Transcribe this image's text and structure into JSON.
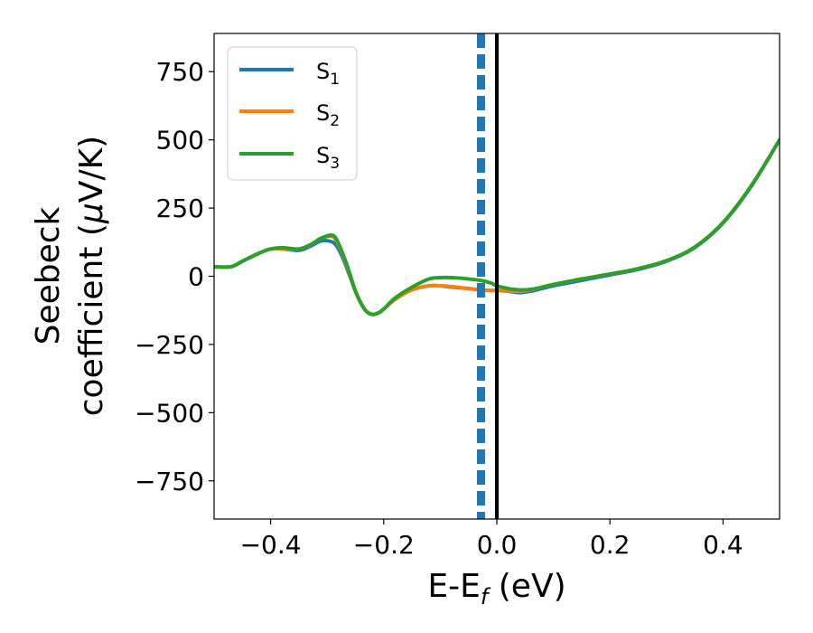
{
  "chart_data": {
    "type": "line",
    "xlabel_main": "E-E",
    "xlabel_sub": "f",
    "xlabel_unit": " (eV)",
    "ylabel_line1": "Seebeck",
    "ylabel_line2_prefix": "coefficient  (",
    "ylabel_mu": "μ",
    "ylabel_line2_suffix": "V/K)",
    "xlim": [
      -0.5,
      0.5
    ],
    "ylim": [
      -890,
      890
    ],
    "xticks": [
      -0.4,
      -0.2,
      0.0,
      0.2,
      0.4
    ],
    "xtick_labels": [
      "−0.4",
      "−0.2",
      "0.0",
      "0.2",
      "0.4"
    ],
    "yticks": [
      750,
      500,
      250,
      0,
      -250,
      -500,
      -750
    ],
    "ytick_labels": [
      "750",
      "500",
      "250",
      "0",
      "−250",
      "−500",
      "−750"
    ],
    "grid": false,
    "legend_position": "top-left",
    "vlines": [
      {
        "x": -0.028,
        "style": "dashed",
        "color": "#1f77b4"
      },
      {
        "x": 0.0,
        "style": "solid",
        "color": "#000000"
      }
    ],
    "series": [
      {
        "name_main": "S",
        "name_sub": "1",
        "color": "#1f77b4",
        "x": [
          -0.5,
          -0.47,
          -0.45,
          -0.42,
          -0.4,
          -0.38,
          -0.35,
          -0.33,
          -0.31,
          -0.29,
          -0.28,
          -0.27,
          -0.26,
          -0.25,
          -0.24,
          -0.23,
          -0.22,
          -0.21,
          -0.2,
          -0.18,
          -0.15,
          -0.12,
          -0.1,
          -0.08,
          -0.05,
          -0.03,
          -0.01,
          0.0,
          0.02,
          0.04,
          0.06,
          0.08,
          0.1,
          0.15,
          0.2,
          0.25,
          0.3,
          0.35,
          0.4,
          0.45,
          0.5
        ],
        "y": [
          35,
          35,
          55,
          85,
          100,
          100,
          95,
          110,
          130,
          125,
          100,
          55,
          0,
          -55,
          -100,
          -130,
          -140,
          -135,
          -120,
          -85,
          -50,
          -35,
          -35,
          -40,
          -45,
          -50,
          -52,
          -52,
          -55,
          -60,
          -55,
          -45,
          -35,
          -15,
          5,
          25,
          55,
          105,
          195,
          330,
          500
        ]
      },
      {
        "name_main": "S",
        "name_sub": "2",
        "color": "#ff7f0e",
        "x": [
          -0.5,
          -0.47,
          -0.45,
          -0.42,
          -0.4,
          -0.38,
          -0.35,
          -0.33,
          -0.31,
          -0.29,
          -0.28,
          -0.27,
          -0.26,
          -0.25,
          -0.24,
          -0.23,
          -0.22,
          -0.21,
          -0.2,
          -0.18,
          -0.15,
          -0.12,
          -0.1,
          -0.08,
          -0.05,
          -0.03,
          -0.01,
          0.0,
          0.02,
          0.04,
          0.06,
          0.08,
          0.1,
          0.15,
          0.2,
          0.25,
          0.3,
          0.35,
          0.4,
          0.45,
          0.5
        ],
        "y": [
          35,
          35,
          55,
          85,
          100,
          100,
          100,
          115,
          140,
          145,
          115,
          65,
          5,
          -55,
          -100,
          -130,
          -140,
          -135,
          -120,
          -85,
          -50,
          -35,
          -35,
          -38,
          -45,
          -50,
          -52,
          -52,
          -54,
          -55,
          -50,
          -40,
          -30,
          -10,
          8,
          28,
          57,
          107,
          197,
          332,
          500
        ]
      },
      {
        "name_main": "S",
        "name_sub": "3",
        "color": "#2ca02c",
        "x": [
          -0.5,
          -0.47,
          -0.45,
          -0.42,
          -0.4,
          -0.38,
          -0.35,
          -0.33,
          -0.31,
          -0.29,
          -0.28,
          -0.27,
          -0.26,
          -0.25,
          -0.24,
          -0.23,
          -0.22,
          -0.21,
          -0.2,
          -0.18,
          -0.15,
          -0.12,
          -0.1,
          -0.08,
          -0.05,
          -0.03,
          -0.01,
          0.0,
          0.02,
          0.04,
          0.06,
          0.08,
          0.1,
          0.15,
          0.2,
          0.25,
          0.3,
          0.35,
          0.4,
          0.45,
          0.5
        ],
        "y": [
          35,
          35,
          55,
          85,
          100,
          105,
          100,
          115,
          140,
          150,
          120,
          70,
          10,
          -55,
          -100,
          -130,
          -140,
          -135,
          -120,
          -80,
          -40,
          -10,
          -5,
          -5,
          -10,
          -15,
          -25,
          -35,
          -45,
          -50,
          -48,
          -40,
          -30,
          -10,
          8,
          28,
          57,
          107,
          197,
          332,
          500
        ]
      }
    ]
  }
}
